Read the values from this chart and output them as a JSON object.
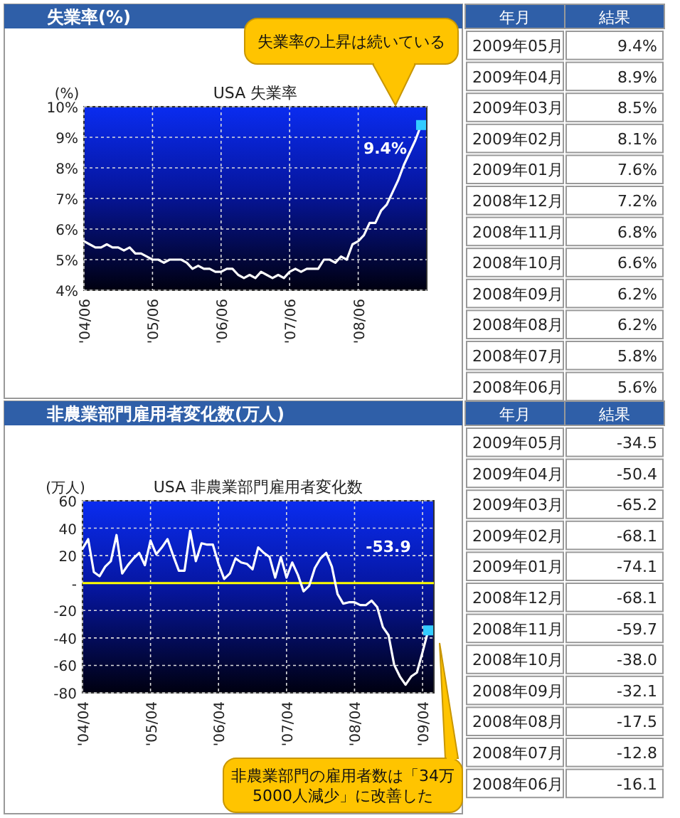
{
  "chart_data": [
    {
      "type": "line",
      "title": "失業率(%)",
      "subtitle": "USA 失業率",
      "ylabel": "(%)",
      "grid": true,
      "x": [
        "2004-06",
        "2004-07",
        "2004-08",
        "2004-09",
        "2004-10",
        "2004-11",
        "2004-12",
        "2005-01",
        "2005-02",
        "2005-03",
        "2005-04",
        "2005-05",
        "2005-06",
        "2005-07",
        "2005-08",
        "2005-09",
        "2005-10",
        "2005-11",
        "2005-12",
        "2006-01",
        "2006-02",
        "2006-03",
        "2006-04",
        "2006-05",
        "2006-06",
        "2006-07",
        "2006-08",
        "2006-09",
        "2006-10",
        "2006-11",
        "2006-12",
        "2007-01",
        "2007-02",
        "2007-03",
        "2007-04",
        "2007-05",
        "2007-06",
        "2007-07",
        "2007-08",
        "2007-09",
        "2007-10",
        "2007-11",
        "2007-12",
        "2008-01",
        "2008-02",
        "2008-03",
        "2008-04",
        "2008-05",
        "2008-06",
        "2008-07",
        "2008-08",
        "2008-09",
        "2008-10",
        "2008-11",
        "2008-12",
        "2009-01",
        "2009-02",
        "2009-03",
        "2009-04",
        "2009-05"
      ],
      "series": [
        {
          "type": "line",
          "color": "#ffffff",
          "values": [
            5.6,
            5.5,
            5.4,
            5.4,
            5.5,
            5.4,
            5.4,
            5.3,
            5.4,
            5.2,
            5.2,
            5.1,
            5.0,
            5.0,
            4.9,
            5.0,
            5.0,
            5.0,
            4.9,
            4.7,
            4.8,
            4.7,
            4.7,
            4.6,
            4.6,
            4.7,
            4.7,
            4.5,
            4.4,
            4.5,
            4.4,
            4.6,
            4.5,
            4.4,
            4.5,
            4.4,
            4.6,
            4.7,
            4.6,
            4.7,
            4.7,
            4.7,
            5.0,
            5.0,
            4.9,
            5.1,
            5.0,
            5.5,
            5.6,
            5.8,
            6.2,
            6.2,
            6.6,
            6.8,
            7.2,
            7.6,
            8.1,
            8.5,
            8.9,
            9.4
          ]
        },
        {
          "type": "scatter",
          "marker": "square",
          "color": "#33ccff",
          "x": [
            "2009-05"
          ],
          "values": [
            9.4
          ]
        }
      ],
      "xlim": [
        "2004-06",
        "2009-06"
      ],
      "xticks": [
        {
          "value": "2004-06",
          "label": "'04/06"
        },
        {
          "value": "2005-06",
          "label": "'05/06"
        },
        {
          "value": "2006-06",
          "label": "'06/06"
        },
        {
          "value": "2007-06",
          "label": "'07/06"
        },
        {
          "value": "2008-06",
          "label": "'08/06"
        }
      ],
      "ylim": [
        4,
        10
      ],
      "yticks": [
        {
          "value": 4,
          "label": "4%"
        },
        {
          "value": 5,
          "label": "5%"
        },
        {
          "value": 6,
          "label": "6%"
        },
        {
          "value": 7,
          "label": "7%"
        },
        {
          "value": 8,
          "label": "8%"
        },
        {
          "value": 9,
          "label": "9%"
        },
        {
          "value": 10,
          "label": "10%"
        }
      ],
      "annotations": [
        "失業率の上昇は続いている",
        {
          "text": "9.4%",
          "x": "2009-05",
          "y": 9.4
        }
      ]
    },
    {
      "type": "other",
      "annotations": [
        "年月",
        "結果"
      ],
      "categories": [
        "2009年05月",
        "2009年04月",
        "2009年03月",
        "2009年02月",
        "2009年01月",
        "2008年12月",
        "2008年11月",
        "2008年10月",
        "2008年09月",
        "2008年08月",
        "2008年07月",
        "2008年06月"
      ],
      "value_labels": [
        "9.4%",
        "8.9%",
        "8.5%",
        "8.1%",
        "7.6%",
        "7.2%",
        "6.8%",
        "6.6%",
        "6.2%",
        "6.2%",
        "5.8%",
        "5.6%"
      ]
    },
    {
      "type": "line",
      "title": "非農業部門雇用者変化数(万人)",
      "subtitle": "USA 非農業部門雇用者変化数",
      "ylabel": "(万人)",
      "grid": true,
      "x": [
        "2004-04",
        "2004-05",
        "2004-06",
        "2004-07",
        "2004-08",
        "2004-09",
        "2004-10",
        "2004-11",
        "2004-12",
        "2005-01",
        "2005-02",
        "2005-03",
        "2005-04",
        "2005-05",
        "2005-06",
        "2005-07",
        "2005-08",
        "2005-09",
        "2005-10",
        "2005-11",
        "2005-12",
        "2006-01",
        "2006-02",
        "2006-03",
        "2006-04",
        "2006-05",
        "2006-06",
        "2006-07",
        "2006-08",
        "2006-09",
        "2006-10",
        "2006-11",
        "2006-12",
        "2007-01",
        "2007-02",
        "2007-03",
        "2007-04",
        "2007-05",
        "2007-06",
        "2007-07",
        "2007-08",
        "2007-09",
        "2007-10",
        "2007-11",
        "2007-12",
        "2008-01",
        "2008-02",
        "2008-03",
        "2008-04",
        "2008-05",
        "2008-06",
        "2008-07",
        "2008-08",
        "2008-09",
        "2008-10",
        "2008-11",
        "2008-12",
        "2009-01",
        "2009-02",
        "2009-03",
        "2009-04",
        "2009-05"
      ],
      "series": [
        {
          "type": "line",
          "color": "#ffffff",
          "values": [
            25,
            32,
            8,
            5,
            12,
            16,
            35,
            7,
            13,
            18,
            22,
            13,
            31,
            21,
            26,
            32,
            20,
            9,
            9,
            38,
            16,
            29,
            28,
            28,
            14,
            3,
            7,
            18,
            15,
            14,
            10,
            26,
            22,
            19,
            4,
            19,
            4,
            15,
            6,
            -6,
            -2,
            11,
            18,
            22,
            12,
            -8,
            -15,
            -14,
            -14,
            -16,
            -16.1,
            -12.8,
            -17.5,
            -32.1,
            -38.0,
            -59.7,
            -68.1,
            -74.1,
            -68.1,
            -65.2,
            -50.4,
            -34.5
          ]
        },
        {
          "type": "scatter",
          "marker": "square",
          "color": "#33ccff",
          "x": [
            "2009-05"
          ],
          "values": [
            -34.5
          ]
        }
      ],
      "xlim": [
        "2004-04",
        "2009-06"
      ],
      "xticks": [
        {
          "value": "2004-04",
          "label": "'04/04"
        },
        {
          "value": "2005-04",
          "label": "'05/04"
        },
        {
          "value": "2006-04",
          "label": "'06/04"
        },
        {
          "value": "2007-04",
          "label": "'07/04"
        },
        {
          "value": "2008-04",
          "label": "'08/04"
        },
        {
          "value": "2009-04",
          "label": "'09/04"
        }
      ],
      "ylim": [
        -80,
        60
      ],
      "yticks": [
        60,
        40,
        20,
        {
          "value": 0,
          "label": "-"
        },
        -20,
        -40,
        -60,
        -80
      ],
      "ref_lines": [
        {
          "axis": "y",
          "value": 0,
          "color": "#ffff00"
        }
      ],
      "annotations": [
        "-53.9",
        "非農業部門の雇用者数は「34万5000人減少」に改善した"
      ]
    },
    {
      "type": "other",
      "annotations": [
        "年月",
        "結果"
      ],
      "categories": [
        "2009年05月",
        "2009年04月",
        "2009年03月",
        "2009年02月",
        "2009年01月",
        "2008年12月",
        "2008年11月",
        "2008年10月",
        "2008年09月",
        "2008年08月",
        "2008年07月",
        "2008年06月"
      ],
      "value_labels": [
        "-34.5",
        "-50.4",
        "-65.2",
        "-68.1",
        "-74.1",
        "-68.1",
        "-59.7",
        "-38.0",
        "-32.1",
        "-17.5",
        "-12.8",
        "-16.1"
      ]
    }
  ]
}
